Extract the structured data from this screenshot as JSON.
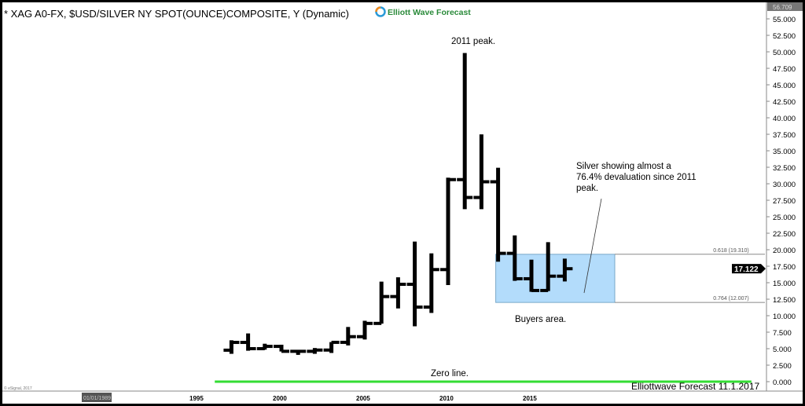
{
  "header": {
    "title": "* XAG A0-FX, $USD/SILVER NY SPOT(OUNCE)COMPOSITE, Y (Dynamic)",
    "logo_text": "Elliott Wave Forecast"
  },
  "footer": {
    "copyright": "© eSignal, 2017",
    "date_box": "01/01/1989",
    "signature": "Elliottwave Forecast 11.1.2017"
  },
  "chart_data": {
    "type": "ohlc",
    "title": "* XAG A0-FX, $USD/SILVER NY SPOT(OUNCE)COMPOSITE, Y (Dynamic)",
    "ylim": [
      0,
      56.709
    ],
    "y_ticks": [
      0,
      2.5,
      5,
      7.5,
      10,
      12.5,
      15,
      17.5,
      20,
      22.5,
      25,
      27.5,
      30,
      32.5,
      35,
      37.5,
      40,
      42.5,
      45,
      47.5,
      50,
      52.5,
      55
    ],
    "y_tick_labels": [
      "0.000",
      "2.500",
      "5.000",
      "7.500",
      "10.000",
      "12.500",
      "15.000",
      "17.500",
      "20.000",
      "22.500",
      "25.000",
      "27.500",
      "30.000",
      "32.500",
      "35.000",
      "37.500",
      "40.000",
      "42.500",
      "45.000",
      "47.500",
      "50.000",
      "52.500",
      "55.000"
    ],
    "y_top_label": "56.709",
    "x_ticks": [
      1995,
      2000,
      2005,
      2010,
      2015
    ],
    "x_tick_labels": [
      "1995",
      "2000",
      "2005",
      "2010",
      "2015"
    ],
    "bars": [
      {
        "year": 1997,
        "o": 4.77,
        "h": 6.27,
        "l": 4.22,
        "c": 5.95
      },
      {
        "year": 1998,
        "o": 5.95,
        "h": 7.31,
        "l": 4.69,
        "c": 5.0
      },
      {
        "year": 1999,
        "o": 5.0,
        "h": 5.75,
        "l": 4.85,
        "c": 5.35
      },
      {
        "year": 2000,
        "o": 5.35,
        "h": 5.6,
        "l": 4.57,
        "c": 4.6
      },
      {
        "year": 2001,
        "o": 4.6,
        "h": 4.82,
        "l": 4.06,
        "c": 4.6
      },
      {
        "year": 2002,
        "o": 4.6,
        "h": 5.1,
        "l": 4.22,
        "c": 4.79
      },
      {
        "year": 2003,
        "o": 4.79,
        "h": 6.0,
        "l": 4.35,
        "c": 5.96
      },
      {
        "year": 2004,
        "o": 5.96,
        "h": 8.29,
        "l": 5.49,
        "c": 6.82
      },
      {
        "year": 2005,
        "o": 6.82,
        "h": 9.23,
        "l": 6.39,
        "c": 8.83
      },
      {
        "year": 2006,
        "o": 8.83,
        "h": 15.17,
        "l": 8.8,
        "c": 12.9
      },
      {
        "year": 2007,
        "o": 12.9,
        "h": 15.82,
        "l": 11.1,
        "c": 14.76
      },
      {
        "year": 2008,
        "o": 14.76,
        "h": 21.24,
        "l": 8.4,
        "c": 11.3
      },
      {
        "year": 2009,
        "o": 11.3,
        "h": 19.45,
        "l": 10.42,
        "c": 16.99
      },
      {
        "year": 2010,
        "o": 16.99,
        "h": 30.93,
        "l": 14.64,
        "c": 30.63
      },
      {
        "year": 2011,
        "o": 30.63,
        "h": 49.82,
        "l": 26.14,
        "c": 27.92
      },
      {
        "year": 2012,
        "o": 27.92,
        "h": 37.48,
        "l": 26.15,
        "c": 30.3
      },
      {
        "year": 2013,
        "o": 30.3,
        "h": 32.43,
        "l": 18.18,
        "c": 19.45
      },
      {
        "year": 2014,
        "o": 19.45,
        "h": 22.18,
        "l": 15.28,
        "c": 15.6
      },
      {
        "year": 2015,
        "o": 15.6,
        "h": 18.49,
        "l": 13.62,
        "c": 13.82
      },
      {
        "year": 2016,
        "o": 13.82,
        "h": 21.14,
        "l": 13.73,
        "c": 15.99
      },
      {
        "year": 2017,
        "o": 15.99,
        "h": 18.65,
        "l": 15.19,
        "c": 17.12
      }
    ],
    "last_price": "17.122",
    "buyers_zone": {
      "from_year": 2013,
      "to_year": 2020,
      "low": 12.007,
      "high": 19.31,
      "color": "#b3dcfb",
      "label_high": "0.618 (19.310)",
      "label_low": "0.764 (12.007)"
    },
    "zero_line": {
      "value": 0,
      "color": "#33dd33",
      "from_year": 1996,
      "to_year": 2028.2
    },
    "annotations": {
      "peak": "2011 peak.",
      "devaluation": [
        "Silver showing almost a",
        "76.4% devaluation since 2011",
        "peak."
      ],
      "buyers": "Buyers area.",
      "zero": "Zero line."
    }
  }
}
